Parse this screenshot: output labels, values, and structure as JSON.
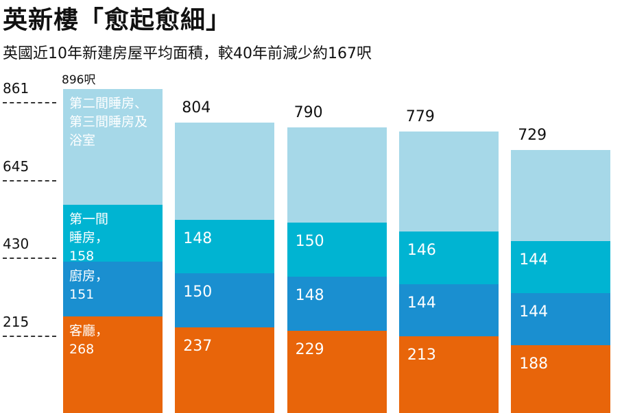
{
  "chart_data": {
    "type": "stacked_bar",
    "title": "英新樓「愈起愈細」",
    "subtitle": "英國近10年新建房屋平均面積，較40年前減少約167呎",
    "categories": [
      null,
      null,
      null,
      null,
      null
    ],
    "series": [
      {
        "name": "客廳，",
        "color": "#e8650a",
        "values": [
          268,
          237,
          229,
          213,
          188
        ]
      },
      {
        "name": "廚房，",
        "color": "#1a8fd0",
        "values": [
          151,
          150,
          148,
          144,
          144
        ]
      },
      {
        "name": "第一間睡房，",
        "color": "#00b4d2",
        "values": [
          158,
          148,
          150,
          146,
          144
        ]
      },
      {
        "name": "第二間睡房、第三間睡房及浴室",
        "color": "#a6d8e8",
        "values": [
          319,
          269,
          263,
          276,
          253
        ]
      }
    ],
    "totals": [
      896,
      804,
      790,
      779,
      729
    ],
    "totals_labels": [
      "896呎",
      "804",
      "790",
      "779",
      "729"
    ],
    "ylim": [
      0,
      896
    ],
    "yticks": [
      861,
      645,
      430,
      215
    ],
    "grid": true
  }
}
